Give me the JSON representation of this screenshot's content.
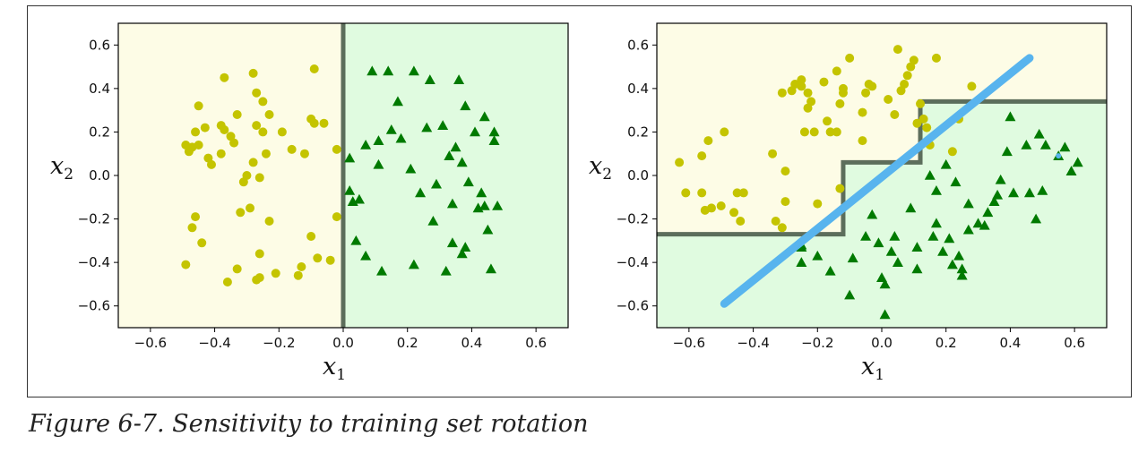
{
  "caption": "Figure 6-7. Sensitivity to training set rotation",
  "chart_data": [
    {
      "type": "scatter",
      "xlabel_text": "x",
      "xlabel_sub": "1",
      "ylabel_text": "x",
      "ylabel_sub": "2",
      "xlim": [
        -0.7,
        0.7
      ],
      "ylim": [
        -0.7,
        0.7
      ],
      "xticks": [
        -0.6,
        -0.4,
        -0.2,
        0.0,
        0.2,
        0.4,
        0.6
      ],
      "yticks": [
        -0.6,
        -0.4,
        -0.2,
        0.0,
        0.2,
        0.4,
        0.6
      ],
      "tick_labels": [
        "−0.6",
        "−0.4",
        "−0.2",
        "0.0",
        "0.2",
        "0.4",
        "0.6"
      ],
      "grid": false,
      "colors": {
        "region_a": "#fdfce6",
        "region_b": "#e0fbe0",
        "class_a": "#c4c400",
        "class_b": "#007a00",
        "boundary": "#4d5e4d"
      },
      "regions": [
        {
          "class": "a",
          "polygon": [
            [
              -0.7,
              -0.7
            ],
            [
              0.0,
              -0.7
            ],
            [
              0.0,
              0.7
            ],
            [
              -0.7,
              0.7
            ]
          ]
        },
        {
          "class": "b",
          "polygon": [
            [
              0.0,
              -0.7
            ],
            [
              0.7,
              -0.7
            ],
            [
              0.7,
              0.7
            ],
            [
              0.0,
              0.7
            ]
          ]
        }
      ],
      "boundary": [
        [
          0.0,
          -0.7
        ],
        [
          0.0,
          0.7
        ]
      ],
      "series": [
        {
          "marker": "circle",
          "points": [
            [
              -0.49,
              0.14
            ],
            [
              -0.48,
              0.11
            ],
            [
              -0.47,
              0.13
            ],
            [
              -0.46,
              0.2
            ],
            [
              -0.46,
              -0.19
            ],
            [
              -0.47,
              -0.24
            ],
            [
              -0.49,
              -0.41
            ],
            [
              -0.45,
              0.32
            ],
            [
              -0.43,
              0.22
            ],
            [
              -0.42,
              0.08
            ],
            [
              -0.45,
              0.14
            ],
            [
              -0.44,
              -0.31
            ],
            [
              -0.41,
              0.05
            ],
            [
              -0.38,
              0.23
            ],
            [
              -0.38,
              0.1
            ],
            [
              -0.37,
              0.45
            ],
            [
              -0.37,
              0.21
            ],
            [
              -0.35,
              0.18
            ],
            [
              -0.34,
              0.15
            ],
            [
              -0.36,
              -0.49
            ],
            [
              -0.33,
              0.28
            ],
            [
              -0.33,
              -0.43
            ],
            [
              -0.32,
              -0.17
            ],
            [
              -0.31,
              -0.03
            ],
            [
              -0.3,
              0.0
            ],
            [
              -0.29,
              -0.15
            ],
            [
              -0.28,
              0.47
            ],
            [
              -0.27,
              0.38
            ],
            [
              -0.27,
              0.23
            ],
            [
              -0.28,
              0.06
            ],
            [
              -0.26,
              -0.01
            ],
            [
              -0.27,
              -0.48
            ],
            [
              -0.26,
              -0.36
            ],
            [
              -0.26,
              -0.47
            ],
            [
              -0.25,
              0.34
            ],
            [
              -0.24,
              0.1
            ],
            [
              -0.23,
              0.28
            ],
            [
              -0.23,
              -0.21
            ],
            [
              -0.25,
              0.2
            ],
            [
              -0.21,
              -0.45
            ],
            [
              -0.19,
              0.2
            ],
            [
              -0.16,
              0.12
            ],
            [
              -0.14,
              -0.46
            ],
            [
              -0.13,
              -0.42
            ],
            [
              -0.12,
              0.1
            ],
            [
              -0.1,
              0.26
            ],
            [
              -0.09,
              0.24
            ],
            [
              -0.09,
              0.49
            ],
            [
              -0.1,
              -0.28
            ],
            [
              -0.08,
              -0.38
            ],
            [
              -0.06,
              0.24
            ],
            [
              -0.04,
              -0.39
            ],
            [
              -0.02,
              0.12
            ],
            [
              -0.02,
              -0.19
            ]
          ]
        },
        {
          "marker": "triangle",
          "points": [
            [
              0.02,
              0.08
            ],
            [
              0.03,
              -0.12
            ],
            [
              0.04,
              -0.3
            ],
            [
              0.02,
              -0.07
            ],
            [
              0.05,
              -0.11
            ],
            [
              0.07,
              0.14
            ],
            [
              0.07,
              -0.37
            ],
            [
              0.09,
              0.48
            ],
            [
              0.11,
              0.16
            ],
            [
              0.11,
              0.05
            ],
            [
              0.12,
              -0.44
            ],
            [
              0.14,
              0.48
            ],
            [
              0.15,
              0.21
            ],
            [
              0.17,
              0.34
            ],
            [
              0.18,
              0.17
            ],
            [
              0.21,
              0.03
            ],
            [
              0.22,
              0.48
            ],
            [
              0.22,
              -0.41
            ],
            [
              0.24,
              -0.08
            ],
            [
              0.26,
              0.22
            ],
            [
              0.27,
              0.44
            ],
            [
              0.28,
              -0.21
            ],
            [
              0.29,
              -0.04
            ],
            [
              0.31,
              0.23
            ],
            [
              0.32,
              -0.44
            ],
            [
              0.33,
              0.09
            ],
            [
              0.34,
              -0.13
            ],
            [
              0.34,
              -0.31
            ],
            [
              0.35,
              0.13
            ],
            [
              0.36,
              0.44
            ],
            [
              0.37,
              0.06
            ],
            [
              0.37,
              -0.36
            ],
            [
              0.38,
              -0.33
            ],
            [
              0.38,
              0.32
            ],
            [
              0.39,
              -0.03
            ],
            [
              0.41,
              0.2
            ],
            [
              0.42,
              -0.15
            ],
            [
              0.43,
              -0.08
            ],
            [
              0.44,
              0.27
            ],
            [
              0.44,
              -0.14
            ],
            [
              0.45,
              -0.25
            ],
            [
              0.46,
              -0.43
            ],
            [
              0.47,
              0.16
            ],
            [
              0.47,
              0.2
            ],
            [
              0.48,
              -0.14
            ]
          ]
        }
      ],
      "extra_line": null
    },
    {
      "type": "scatter",
      "xlabel_text": "x",
      "xlabel_sub": "1",
      "ylabel_text": "x",
      "ylabel_sub": "2",
      "xlim": [
        -0.7,
        0.7
      ],
      "ylim": [
        -0.7,
        0.7
      ],
      "xticks": [
        -0.6,
        -0.4,
        -0.2,
        0.0,
        0.2,
        0.4,
        0.6
      ],
      "yticks": [
        -0.6,
        -0.4,
        -0.2,
        0.0,
        0.2,
        0.4,
        0.6
      ],
      "tick_labels": [
        "−0.6",
        "−0.4",
        "−0.2",
        "0.0",
        "0.2",
        "0.4",
        "0.6"
      ],
      "grid": false,
      "colors": {
        "region_a": "#fdfce6",
        "region_b": "#e0fbe0",
        "class_a": "#c4c400",
        "class_b": "#007a00",
        "boundary": "#4d5e4d",
        "line": "#58b4ee"
      },
      "regions": [
        {
          "class": "a",
          "polygon": [
            [
              -0.7,
              0.7
            ],
            [
              0.7,
              0.7
            ],
            [
              0.7,
              0.34
            ],
            [
              0.12,
              0.34
            ],
            [
              0.12,
              0.06
            ],
            [
              -0.12,
              0.06
            ],
            [
              -0.12,
              -0.27
            ],
            [
              -0.7,
              -0.27
            ]
          ]
        },
        {
          "class": "b",
          "polygon": [
            [
              -0.7,
              -0.7
            ],
            [
              0.7,
              -0.7
            ],
            [
              0.7,
              0.34
            ],
            [
              0.12,
              0.34
            ],
            [
              0.12,
              0.06
            ],
            [
              -0.12,
              0.06
            ],
            [
              -0.12,
              -0.27
            ],
            [
              -0.7,
              -0.27
            ]
          ]
        }
      ],
      "boundary": [
        [
          -0.7,
          -0.27
        ],
        [
          -0.12,
          -0.27
        ],
        [
          -0.12,
          0.06
        ],
        [
          0.12,
          0.06
        ],
        [
          0.12,
          0.34
        ],
        [
          0.7,
          0.34
        ]
      ],
      "series": [
        {
          "marker": "circle",
          "points": [
            [
              -0.63,
              0.06
            ],
            [
              -0.61,
              -0.08
            ],
            [
              -0.56,
              0.09
            ],
            [
              -0.56,
              -0.08
            ],
            [
              -0.55,
              -0.16
            ],
            [
              -0.54,
              0.16
            ],
            [
              -0.53,
              -0.15
            ],
            [
              -0.5,
              -0.14
            ],
            [
              -0.49,
              0.2
            ],
            [
              -0.46,
              -0.17
            ],
            [
              -0.45,
              -0.08
            ],
            [
              -0.44,
              -0.21
            ],
            [
              -0.43,
              -0.08
            ],
            [
              -0.34,
              0.1
            ],
            [
              -0.33,
              -0.21
            ],
            [
              -0.31,
              0.38
            ],
            [
              -0.31,
              -0.24
            ],
            [
              -0.3,
              -0.12
            ],
            [
              -0.3,
              0.02
            ],
            [
              -0.28,
              0.39
            ],
            [
              -0.27,
              0.42
            ],
            [
              -0.25,
              0.41
            ],
            [
              -0.25,
              0.44
            ],
            [
              -0.24,
              0.2
            ],
            [
              -0.23,
              0.38
            ],
            [
              -0.23,
              0.31
            ],
            [
              -0.22,
              0.34
            ],
            [
              -0.21,
              0.2
            ],
            [
              -0.2,
              -0.13
            ],
            [
              -0.18,
              0.43
            ],
            [
              -0.17,
              0.25
            ],
            [
              -0.16,
              0.2
            ],
            [
              -0.14,
              0.48
            ],
            [
              -0.14,
              0.2
            ],
            [
              -0.13,
              0.33
            ],
            [
              -0.13,
              -0.06
            ],
            [
              -0.12,
              0.4
            ],
            [
              -0.12,
              0.38
            ],
            [
              -0.1,
              0.54
            ],
            [
              -0.06,
              0.29
            ],
            [
              -0.06,
              0.16
            ],
            [
              -0.05,
              0.38
            ],
            [
              -0.04,
              0.42
            ],
            [
              -0.03,
              0.41
            ],
            [
              0.02,
              0.35
            ],
            [
              0.04,
              0.28
            ],
            [
              0.05,
              0.58
            ],
            [
              0.06,
              0.39
            ],
            [
              0.07,
              0.42
            ],
            [
              0.08,
              0.46
            ],
            [
              0.09,
              0.5
            ],
            [
              0.1,
              0.53
            ],
            [
              0.11,
              0.24
            ],
            [
              0.12,
              0.33
            ],
            [
              0.13,
              0.26
            ],
            [
              0.14,
              0.22
            ],
            [
              0.15,
              0.14
            ],
            [
              0.17,
              0.54
            ],
            [
              0.22,
              0.11
            ],
            [
              0.24,
              0.26
            ],
            [
              0.28,
              0.41
            ]
          ]
        },
        {
          "marker": "triangle",
          "points": [
            [
              -0.25,
              -0.32
            ],
            [
              -0.25,
              -0.33
            ],
            [
              -0.25,
              -0.4
            ],
            [
              -0.2,
              -0.37
            ],
            [
              -0.16,
              -0.44
            ],
            [
              -0.1,
              -0.55
            ],
            [
              -0.09,
              -0.38
            ],
            [
              -0.05,
              -0.28
            ],
            [
              -0.03,
              -0.18
            ],
            [
              -0.01,
              -0.31
            ],
            [
              0.0,
              -0.47
            ],
            [
              0.01,
              -0.5
            ],
            [
              0.01,
              -0.64
            ],
            [
              0.03,
              -0.35
            ],
            [
              0.04,
              -0.28
            ],
            [
              0.05,
              -0.4
            ],
            [
              0.09,
              -0.15
            ],
            [
              0.11,
              -0.43
            ],
            [
              0.11,
              -0.33
            ],
            [
              0.15,
              0.0
            ],
            [
              0.16,
              -0.28
            ],
            [
              0.17,
              -0.22
            ],
            [
              0.17,
              -0.07
            ],
            [
              0.19,
              -0.35
            ],
            [
              0.2,
              0.05
            ],
            [
              0.21,
              -0.29
            ],
            [
              0.22,
              -0.41
            ],
            [
              0.23,
              -0.03
            ],
            [
              0.24,
              -0.37
            ],
            [
              0.25,
              -0.43
            ],
            [
              0.25,
              -0.46
            ],
            [
              0.27,
              -0.13
            ],
            [
              0.27,
              -0.25
            ],
            [
              0.3,
              -0.22
            ],
            [
              0.32,
              -0.23
            ],
            [
              0.33,
              -0.17
            ],
            [
              0.35,
              -0.12
            ],
            [
              0.36,
              -0.09
            ],
            [
              0.37,
              -0.02
            ],
            [
              0.39,
              0.11
            ],
            [
              0.4,
              0.27
            ],
            [
              0.41,
              -0.08
            ],
            [
              0.45,
              0.14
            ],
            [
              0.46,
              -0.08
            ],
            [
              0.48,
              -0.2
            ],
            [
              0.49,
              0.19
            ],
            [
              0.5,
              -0.07
            ],
            [
              0.51,
              0.14
            ],
            [
              0.55,
              0.09
            ],
            [
              0.57,
              0.13
            ],
            [
              0.59,
              0.02
            ],
            [
              0.61,
              0.06
            ]
          ]
        }
      ],
      "extra_line": {
        "points": [
          [
            -0.49,
            -0.59
          ],
          [
            0.46,
            0.54
          ]
        ],
        "dot": [
          0.55,
          0.09
        ]
      }
    }
  ]
}
